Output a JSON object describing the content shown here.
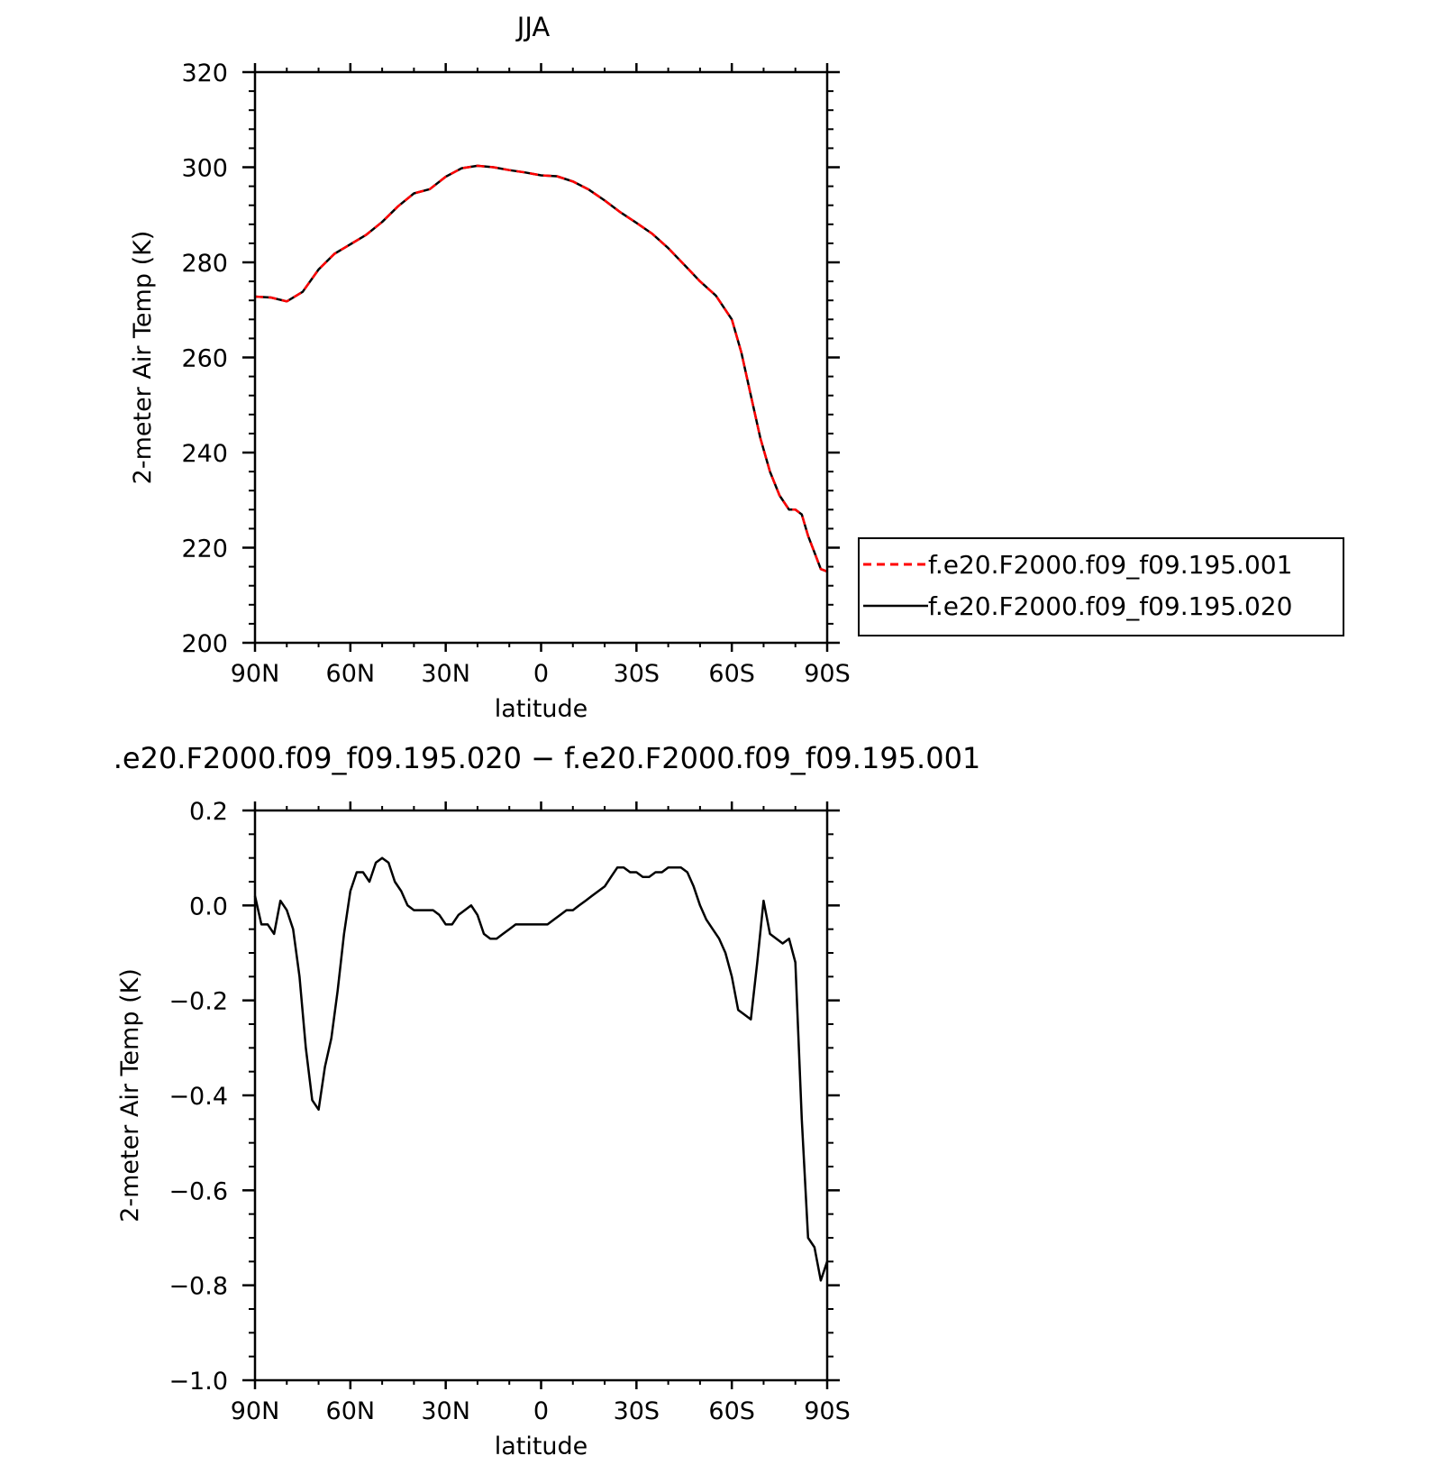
{
  "chart_data": [
    {
      "type": "line",
      "title": "JJA",
      "xlabel": "latitude",
      "ylabel": "2-meter Air Temp (K)",
      "x_ticks": [
        {
          "value": 90,
          "label": "90N"
        },
        {
          "value": 60,
          "label": "60N"
        },
        {
          "value": 30,
          "label": "30N"
        },
        {
          "value": 0,
          "label": "0"
        },
        {
          "value": -30,
          "label": "30S"
        },
        {
          "value": -60,
          "label": "60S"
        },
        {
          "value": -90,
          "label": "90S"
        }
      ],
      "xlim": [
        90,
        -90
      ],
      "ylim": [
        200,
        320
      ],
      "y_ticks": [
        {
          "value": 200,
          "label": "200"
        },
        {
          "value": 220,
          "label": "220"
        },
        {
          "value": 240,
          "label": "240"
        },
        {
          "value": 260,
          "label": "260"
        },
        {
          "value": 280,
          "label": "280"
        },
        {
          "value": 300,
          "label": "300"
        },
        {
          "value": 320,
          "label": "320"
        }
      ],
      "grid": false,
      "legend_position": "right",
      "x": [
        90,
        85,
        80,
        75,
        70,
        65,
        60,
        55,
        50,
        45,
        40,
        35,
        30,
        25,
        20,
        15,
        10,
        5,
        0,
        -5,
        -10,
        -15,
        -20,
        -25,
        -30,
        -35,
        -40,
        -45,
        -50,
        -55,
        -60,
        -63,
        -66,
        -69,
        -72,
        -75,
        -78,
        -80,
        -82,
        -84,
        -86,
        -88,
        -90
      ],
      "series": [
        {
          "name": "f.e20.F2000.f09_f09.195.001",
          "color": "#ff0000",
          "dash": "dashed",
          "values": [
            272.8,
            272.6,
            271.8,
            273.8,
            278.5,
            281.8,
            283.8,
            285.8,
            288.5,
            291.8,
            294.5,
            295.4,
            298.0,
            299.8,
            300.3,
            300.0,
            299.4,
            298.9,
            298.3,
            298.1,
            297.0,
            295.3,
            293.0,
            290.5,
            288.3,
            286.0,
            283.0,
            279.5,
            276.0,
            273.0,
            268.0,
            261.0,
            252.0,
            243.0,
            236.0,
            231.0,
            228.0,
            228.0,
            227.0,
            222.5,
            219.0,
            215.5,
            215.0
          ]
        },
        {
          "name": "f.e20.F2000.f09_f09.195.020",
          "color": "#000000",
          "dash": "solid",
          "values": [
            272.8,
            272.6,
            271.8,
            273.8,
            278.5,
            281.8,
            283.8,
            285.8,
            288.5,
            291.8,
            294.5,
            295.4,
            298.0,
            299.8,
            300.3,
            300.0,
            299.4,
            298.9,
            298.3,
            298.1,
            297.0,
            295.3,
            293.0,
            290.5,
            288.3,
            286.0,
            283.0,
            279.5,
            276.0,
            273.0,
            268.0,
            261.0,
            252.0,
            243.0,
            236.0,
            231.0,
            228.0,
            228.0,
            227.0,
            222.5,
            219.0,
            215.5,
            215.0
          ]
        }
      ]
    },
    {
      "type": "line",
      "title": ".e20.F2000.f09_f09.195.020 − f.e20.F2000.f09_f09.195.001",
      "xlabel": "latitude",
      "ylabel": "2-meter Air Temp (K)",
      "x_ticks": [
        {
          "value": 90,
          "label": "90N"
        },
        {
          "value": 60,
          "label": "60N"
        },
        {
          "value": 30,
          "label": "30N"
        },
        {
          "value": 0,
          "label": "0"
        },
        {
          "value": -30,
          "label": "30S"
        },
        {
          "value": -60,
          "label": "60S"
        },
        {
          "value": -90,
          "label": "90S"
        }
      ],
      "xlim": [
        90,
        -90
      ],
      "ylim": [
        -1.0,
        0.2
      ],
      "y_ticks": [
        {
          "value": -1.0,
          "label": "−1.0"
        },
        {
          "value": -0.8,
          "label": "−0.8"
        },
        {
          "value": -0.6,
          "label": "−0.6"
        },
        {
          "value": -0.4,
          "label": "−0.4"
        },
        {
          "value": -0.2,
          "label": "−0.2"
        },
        {
          "value": 0.0,
          "label": "0.0"
        },
        {
          "value": 0.2,
          "label": "0.2"
        }
      ],
      "grid": false,
      "x": [
        90,
        88,
        86,
        84,
        82,
        80,
        78,
        76,
        74,
        72,
        70,
        68,
        66,
        64,
        62,
        60,
        58,
        56,
        54,
        52,
        50,
        48,
        46,
        44,
        42,
        40,
        38,
        36,
        34,
        32,
        30,
        28,
        26,
        24,
        22,
        20,
        18,
        16,
        14,
        12,
        10,
        8,
        6,
        4,
        2,
        0,
        -2,
        -4,
        -6,
        -8,
        -10,
        -12,
        -14,
        -16,
        -18,
        -20,
        -22,
        -24,
        -26,
        -28,
        -30,
        -32,
        -34,
        -36,
        -38,
        -40,
        -42,
        -44,
        -46,
        -48,
        -50,
        -52,
        -54,
        -56,
        -58,
        -60,
        -62,
        -64,
        -66,
        -68,
        -70,
        -72,
        -74,
        -76,
        -78,
        -80,
        -82,
        -84,
        -86,
        -88,
        -90
      ],
      "series": [
        {
          "name": "",
          "color": "#000000",
          "values": [
            0.02,
            -0.04,
            -0.04,
            -0.06,
            0.01,
            -0.01,
            -0.05,
            -0.15,
            -0.3,
            -0.41,
            -0.43,
            -0.34,
            -0.28,
            -0.18,
            -0.06,
            0.03,
            0.07,
            0.07,
            0.05,
            0.09,
            0.1,
            0.09,
            0.05,
            0.03,
            0.0,
            -0.01,
            -0.01,
            -0.01,
            -0.01,
            -0.02,
            -0.04,
            -0.04,
            -0.02,
            -0.01,
            0.0,
            -0.02,
            -0.06,
            -0.07,
            -0.07,
            -0.06,
            -0.05,
            -0.04,
            -0.04,
            -0.04,
            -0.04,
            -0.04,
            -0.04,
            -0.03,
            -0.02,
            -0.01,
            -0.01,
            0.0,
            0.01,
            0.02,
            0.03,
            0.04,
            0.06,
            0.08,
            0.08,
            0.07,
            0.07,
            0.06,
            0.06,
            0.07,
            0.07,
            0.08,
            0.08,
            0.08,
            0.07,
            0.04,
            0.0,
            -0.03,
            -0.05,
            -0.07,
            -0.1,
            -0.15,
            -0.22,
            -0.23,
            -0.24,
            -0.12,
            0.01,
            -0.06,
            -0.07,
            -0.08,
            -0.07,
            -0.12,
            -0.45,
            -0.7,
            -0.72,
            -0.79,
            -0.75
          ]
        }
      ]
    }
  ]
}
